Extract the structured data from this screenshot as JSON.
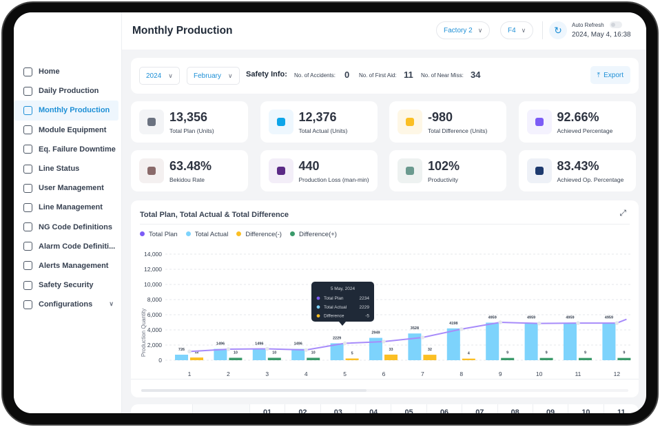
{
  "sidebar": {
    "items": [
      {
        "label": "Home",
        "icon": "home-icon"
      },
      {
        "label": "Daily Production",
        "icon": "building-icon"
      },
      {
        "label": "Monthly Production",
        "icon": "factory-icon",
        "active": true
      },
      {
        "label": "Module Equipment",
        "icon": "sliders-icon"
      },
      {
        "label": "Eq. Failure Downtime",
        "icon": "monitor-icon"
      },
      {
        "label": "Line Status",
        "icon": "list-icon"
      },
      {
        "label": "User Management",
        "icon": "users-icon"
      },
      {
        "label": "Line Management",
        "icon": "bar-chart-icon"
      },
      {
        "label": "NG Code Definitions",
        "icon": "grid-icon"
      },
      {
        "label": "Alarm Code Definiti...",
        "icon": "message-icon"
      },
      {
        "label": "Alerts Management",
        "icon": "alert-icon"
      },
      {
        "label": "Safety Security",
        "icon": "shield-icon"
      },
      {
        "label": "Configurations",
        "icon": "gear-icon",
        "expandable": true
      }
    ]
  },
  "header": {
    "title": "Monthly Production",
    "factory": "Factory 2",
    "line": "F4",
    "auto_refresh_label": "Auto Refresh",
    "auto_refresh_on": false,
    "datetime": "2024, May 4, 16:38"
  },
  "filters": {
    "year": "2024",
    "month": "February",
    "safety_label": "Safety Info:",
    "accidents_label": "No. of Accidents:",
    "accidents": "0",
    "first_aid_label": "No. of First Aid:",
    "first_aid": "11",
    "near_miss_label": "No. of Near Miss:",
    "near_miss": "34",
    "export_label": "Export"
  },
  "stats": [
    {
      "value": "13,356",
      "label": "Total Plan (Units)",
      "color": "#6b7280",
      "bg": "#f3f4f6"
    },
    {
      "value": "12,376",
      "label": "Total Actual (Units)",
      "color": "#0ea5e9",
      "bg": "#eef7fe"
    },
    {
      "value": "-980",
      "label": "Total Difference (Units)",
      "color": "#fbbf24",
      "bg": "#fef7e6"
    },
    {
      "value": "92.66%",
      "label": "Achieved Percentage",
      "color": "#7c5cf6",
      "bg": "#f4f2fe"
    },
    {
      "value": "63.48%",
      "label": "Bekidou Rate",
      "color": "#8a6a6a",
      "bg": "#f4f0f0"
    },
    {
      "value": "440",
      "label": "Production Loss (man-min)",
      "color": "#5b2a86",
      "bg": "#f3eef8"
    },
    {
      "value": "102%",
      "label": "Productivity",
      "color": "#6b9a8f",
      "bg": "#eef2f1"
    },
    {
      "value": "83.43%",
      "label": "Achieved Op. Percentage",
      "color": "#1e3a6e",
      "bg": "#eef1f7"
    }
  ],
  "chart_data": {
    "type": "bar",
    "title": "Total Plan, Total Actual & Total Difference",
    "ylabel": "Production Quantity",
    "ylim": [
      0,
      14000
    ],
    "yticks": [
      "0",
      "2,000",
      "4,000",
      "6,000",
      "8,000",
      "10,000",
      "12,000",
      "14,000"
    ],
    "categories": [
      "1",
      "2",
      "3",
      "4",
      "5",
      "6",
      "7",
      "8",
      "9",
      "10",
      "11",
      "12"
    ],
    "legend": [
      {
        "name": "Total Plan",
        "color": "#7c5cf6"
      },
      {
        "name": "Total Actual",
        "color": "#7dd3fc"
      },
      {
        "name": "Difference(-)",
        "color": "#fbbf24"
      },
      {
        "name": "Difference(+)",
        "color": "#3a9a6a"
      }
    ],
    "series": [
      {
        "name": "Total Plan",
        "type": "line",
        "values": [
          1150,
          1450,
          1500,
          1350,
          2234,
          2450,
          3000,
          4100,
          5000,
          4850,
          4900,
          4900
        ]
      },
      {
        "name": "Total Actual",
        "values": [
          726,
          1496,
          1496,
          1496,
          2229,
          2949,
          3528,
          4198,
          4959,
          4959,
          4959,
          4959
        ]
      },
      {
        "name": "Difference",
        "values": [
          -12,
          10,
          10,
          10,
          -5,
          -33,
          -32,
          -4,
          9,
          9,
          9,
          9
        ]
      }
    ],
    "tooltip": {
      "title": "5 May, 2024",
      "rows": [
        {
          "label": "Total Plan",
          "value": "2234",
          "color": "#7c5cf6"
        },
        {
          "label": "Total Actual",
          "value": "2229",
          "color": "#7dd3fc"
        },
        {
          "label": "Difference",
          "value": "-5",
          "color": "#fbbf24"
        }
      ]
    }
  },
  "table": {
    "headers": [
      "01",
      "02",
      "03",
      "04",
      "05",
      "06",
      "07",
      "08",
      "09",
      "10",
      "11"
    ]
  }
}
